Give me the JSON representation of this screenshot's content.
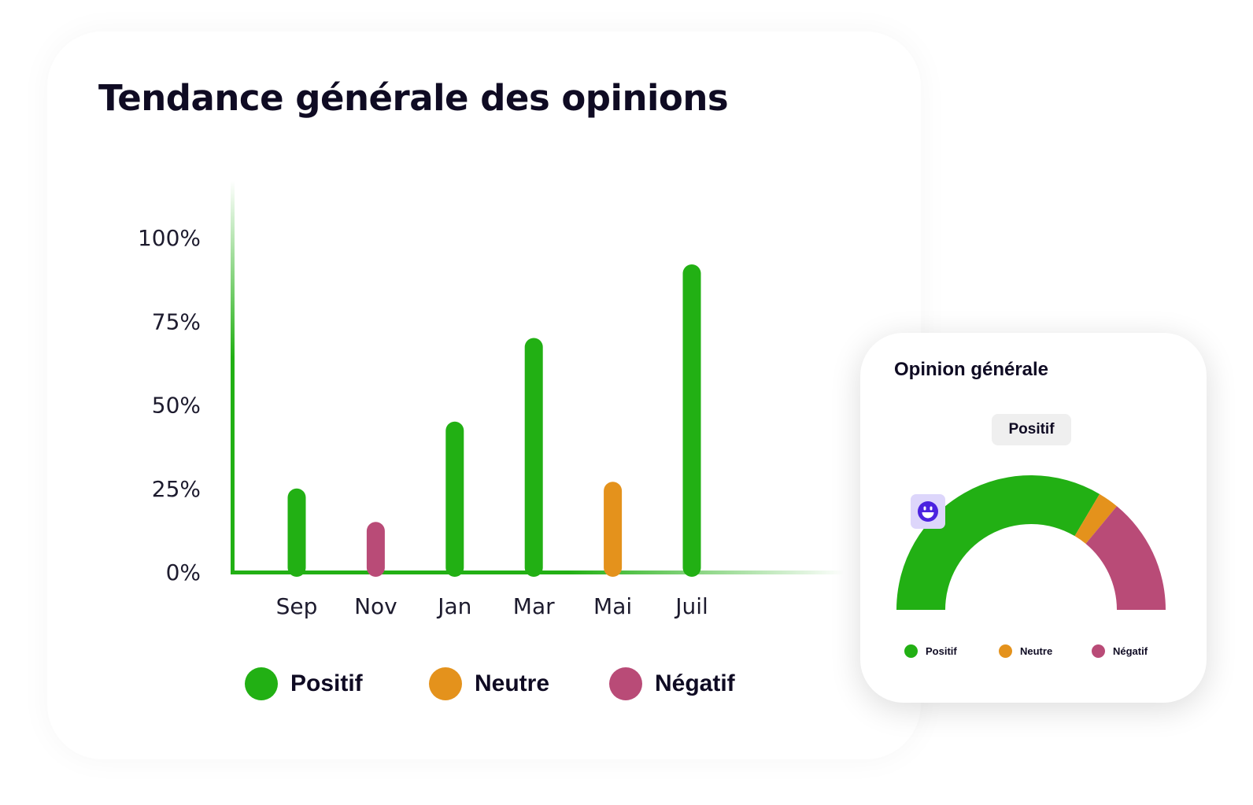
{
  "title": "Tendance générale des opinions",
  "colors": {
    "positif": "#22b014",
    "neutre": "#e4921c",
    "negatif": "#b94b77",
    "accent_icon": "#4b22e0",
    "icon_bg": "#ddd6fb"
  },
  "chart_data": [
    {
      "type": "bar",
      "title": "Tendance générale des opinions",
      "categories": [
        "Sep",
        "Nov",
        "Jan",
        "Mar",
        "Mai",
        "Juil"
      ],
      "values": [
        25,
        15,
        45,
        70,
        27,
        92
      ],
      "sentiment": [
        "positif",
        "negatif",
        "positif",
        "positif",
        "neutre",
        "positif"
      ],
      "yticks": [
        "0%",
        "25%",
        "50%",
        "75%",
        "100%"
      ],
      "ylim": [
        0,
        100
      ],
      "xlabel": "",
      "ylabel": "",
      "grid": false,
      "legend": [
        {
          "label": "Positif",
          "color": "#22b014"
        },
        {
          "label": "Neutre",
          "color": "#e4921c"
        },
        {
          "label": "Négatif",
          "color": "#b94b77"
        }
      ],
      "legend_position": "bottom"
    },
    {
      "type": "pie",
      "title": "Opinion générale",
      "style": "semi-donut",
      "slices": [
        {
          "label": "Positif",
          "value": 67,
          "color": "#22b014"
        },
        {
          "label": "Neutre",
          "value": 5,
          "color": "#e4921c"
        },
        {
          "label": "Négatif",
          "value": 28,
          "color": "#b94b77"
        }
      ],
      "selected_label": "Positif",
      "legend_position": "bottom"
    }
  ],
  "side_card": {
    "title": "Opinion générale",
    "badge": "Positif",
    "icon": "smiley-icon"
  }
}
